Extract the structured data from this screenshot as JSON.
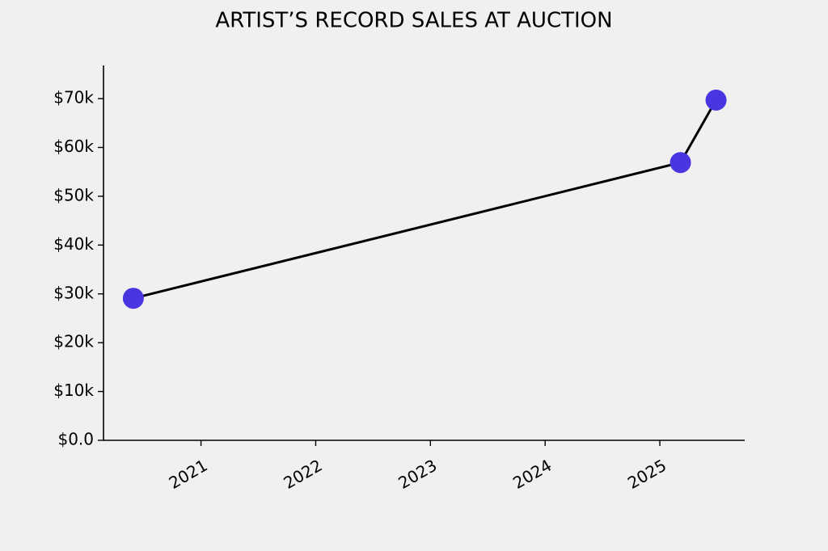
{
  "chart_data": {
    "type": "line",
    "title": "ARTIST’S RECORD SALES AT AUCTION",
    "x": [
      2020.41,
      2025.18,
      2025.49
    ],
    "series": [
      {
        "values": [
          29100,
          56900,
          69700
        ],
        "color": "#4a36e0"
      }
    ],
    "line_color": "#000000",
    "xlim": [
      2020.15,
      2025.74
    ],
    "xticks": [
      2021,
      2022,
      2023,
      2024,
      2025
    ],
    "ylim": [
      0,
      76800
    ],
    "yticks": [
      {
        "value": 0,
        "label": "$0.0"
      },
      {
        "value": 10000,
        "label": "$10k"
      },
      {
        "value": 20000,
        "label": "$20k"
      },
      {
        "value": 30000,
        "label": "$30k"
      },
      {
        "value": 40000,
        "label": "$40k"
      },
      {
        "value": 50000,
        "label": "$50k"
      },
      {
        "value": 60000,
        "label": "$60k"
      },
      {
        "value": 70000,
        "label": "$70k"
      }
    ],
    "grid": false
  }
}
